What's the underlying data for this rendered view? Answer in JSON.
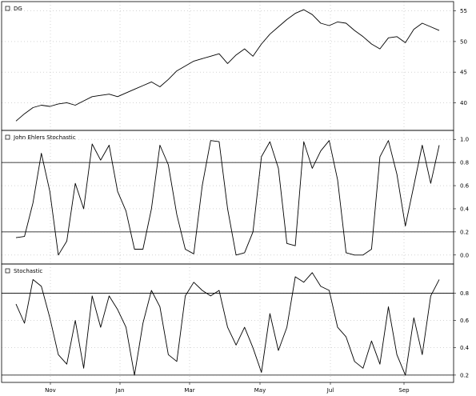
{
  "chart_data": [
    {
      "type": "line",
      "title": "",
      "legend": "DG",
      "ylim": [
        36,
        56
      ],
      "yticks": [
        40,
        45,
        50,
        55
      ],
      "grid": true,
      "x_labels": [
        "Nov",
        "Jan",
        "Mar",
        "May",
        "Jul",
        "Sep"
      ],
      "series": [
        {
          "name": "DG",
          "values": [
            37.0,
            38.2,
            39.2,
            39.6,
            39.4,
            39.8,
            40.0,
            39.6,
            40.3,
            41.0,
            41.2,
            41.4,
            41.0,
            41.6,
            42.2,
            42.8,
            43.4,
            42.6,
            43.8,
            45.2,
            46.0,
            46.8,
            47.2,
            47.6,
            48.0,
            46.4,
            47.8,
            48.8,
            47.6,
            49.6,
            51.2,
            52.4,
            53.6,
            54.6,
            55.2,
            54.4,
            53.0,
            52.6,
            53.2,
            53.0,
            51.8,
            50.8,
            49.6,
            48.8,
            50.6,
            50.8,
            49.8,
            52.0,
            53.0,
            52.4,
            51.8
          ]
        }
      ]
    },
    {
      "type": "line",
      "title": "",
      "legend": "John Ehlers Stochastic",
      "ylim": [
        -0.05,
        1.05
      ],
      "yticks": [
        0.0,
        0.2,
        0.4,
        0.6,
        0.8,
        1.0
      ],
      "levels": [
        0.8,
        0.2
      ],
      "grid": true,
      "x_labels": [
        "Nov",
        "Jan",
        "Mar",
        "May",
        "Jul",
        "Sep"
      ],
      "series": [
        {
          "name": "John Ehlers Stochastic",
          "values": [
            0.15,
            0.16,
            0.45,
            0.88,
            0.55,
            0.0,
            0.12,
            0.62,
            0.4,
            0.96,
            0.82,
            0.95,
            0.55,
            0.38,
            0.05,
            0.05,
            0.4,
            0.95,
            0.78,
            0.35,
            0.05,
            0.01,
            0.6,
            0.99,
            0.98,
            0.4,
            0.0,
            0.02,
            0.2,
            0.85,
            0.98,
            0.75,
            0.1,
            0.08,
            0.98,
            0.75,
            0.9,
            0.99,
            0.65,
            0.02,
            0.0,
            0.0,
            0.05,
            0.85,
            0.99,
            0.7,
            0.25,
            0.6,
            0.95,
            0.62,
            0.95
          ]
        }
      ]
    },
    {
      "type": "line",
      "title": "",
      "legend": "Stochastic",
      "ylim": [
        0.17,
        0.99
      ],
      "yticks": [
        0.2,
        0.4,
        0.6,
        0.8
      ],
      "levels": [
        0.8,
        0.2
      ],
      "grid": true,
      "x_labels": [
        "Nov",
        "Jan",
        "Mar",
        "May",
        "Jul",
        "Sep"
      ],
      "series": [
        {
          "name": "Stochastic",
          "values": [
            0.72,
            0.58,
            0.9,
            0.85,
            0.62,
            0.35,
            0.28,
            0.6,
            0.25,
            0.78,
            0.55,
            0.78,
            0.68,
            0.55,
            0.2,
            0.58,
            0.82,
            0.7,
            0.35,
            0.3,
            0.78,
            0.88,
            0.82,
            0.78,
            0.82,
            0.55,
            0.42,
            0.55,
            0.4,
            0.22,
            0.65,
            0.38,
            0.55,
            0.92,
            0.88,
            0.95,
            0.85,
            0.82,
            0.55,
            0.48,
            0.3,
            0.25,
            0.45,
            0.28,
            0.7,
            0.35,
            0.2,
            0.62,
            0.35,
            0.78,
            0.9
          ]
        }
      ]
    }
  ]
}
